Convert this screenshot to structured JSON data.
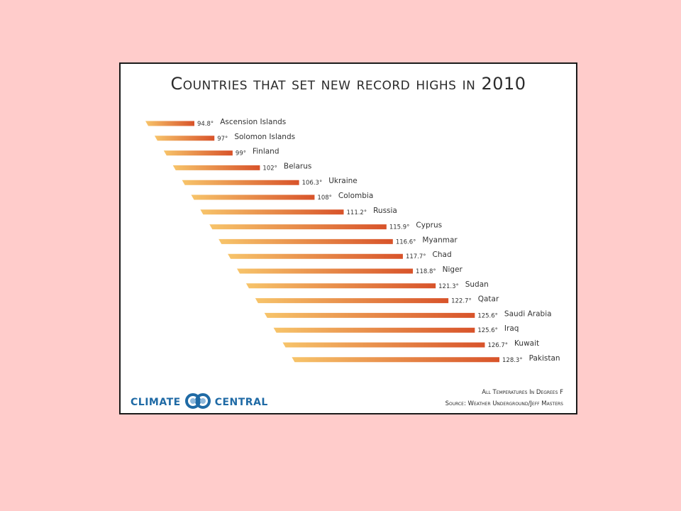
{
  "chart_data": {
    "type": "bar",
    "orientation": "horizontal",
    "title": "Countries that set new record highs in 2010",
    "categories": [
      "Ascension Islands",
      "Solomon Islands",
      "Finland",
      "Belarus",
      "Ukraine",
      "Colombia",
      "Russia",
      "Cyprus",
      "Myanmar",
      "Chad",
      "Niger",
      "Sudan",
      "Qatar",
      "Saudi Arabia",
      "Iraq",
      "Kuwait",
      "Pakistan"
    ],
    "values": [
      94.8,
      97,
      99,
      102,
      106.3,
      108,
      111.2,
      115.9,
      116.6,
      117.7,
      118.8,
      121.3,
      122.7,
      125.6,
      125.6,
      126.7,
      128.3
    ],
    "value_labels": [
      "94.8°",
      "97°",
      "99°",
      "102°",
      "106.3°",
      "108°",
      "111.2°",
      "115.9°",
      "116.6°",
      "117.7°",
      "118.8°",
      "121.3°",
      "122.7°",
      "125.6°",
      "125.6°",
      "126.7°",
      "128.3°"
    ],
    "units_note": "All Temperatures In Degrees F",
    "source_note": "Source: Weather Underground/Jeff Masters",
    "colors": {
      "low": "#f7c46a",
      "high": "#d8532a"
    }
  },
  "logo": {
    "left_text": "CLIMATE",
    "right_text": "CENTRAL",
    "icon": "climate-central-logo-icon",
    "color": "#1f6aa5"
  }
}
